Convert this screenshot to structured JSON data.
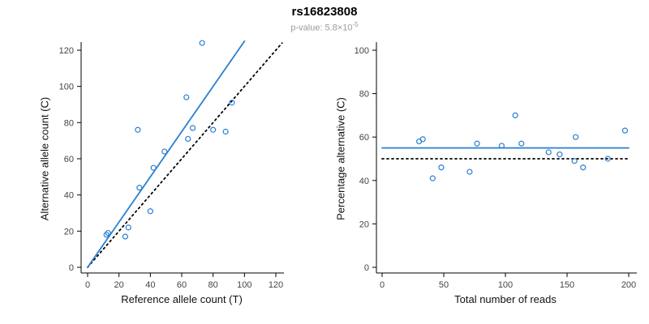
{
  "header": {
    "title": "rs16823808",
    "subtitle_prefix": "p-value: 5.8×10",
    "subtitle_exponent": "-5"
  },
  "chart_data": [
    {
      "type": "scatter",
      "panel": "allele-counts",
      "xlabel": "Reference allele count (T)",
      "ylabel": "Alternative allele count (C)",
      "xlim": [
        0,
        120
      ],
      "ylim": [
        0,
        120
      ],
      "xticks": [
        0,
        20,
        40,
        60,
        80,
        100,
        120
      ],
      "yticks": [
        0,
        20,
        40,
        60,
        80,
        100,
        120
      ],
      "grid": false,
      "legend": "none",
      "point_color": "#2a7fd0",
      "points": [
        [
          12,
          18
        ],
        [
          13,
          19
        ],
        [
          24,
          17
        ],
        [
          26,
          22
        ],
        [
          32,
          76
        ],
        [
          33,
          44
        ],
        [
          40,
          31
        ],
        [
          42,
          55
        ],
        [
          49,
          64
        ],
        [
          63,
          94
        ],
        [
          64,
          71
        ],
        [
          67,
          77
        ],
        [
          73,
          124
        ],
        [
          80,
          76
        ],
        [
          88,
          75
        ],
        [
          92,
          91
        ]
      ],
      "lines": [
        {
          "name": "fitted-line",
          "color": "#2a7fd0",
          "style": "solid",
          "x": [
            0,
            100
          ],
          "y": [
            0,
            125
          ]
        },
        {
          "name": "identity-line",
          "color": "#000000",
          "style": "dotted",
          "x": [
            0,
            124
          ],
          "y": [
            0,
            124
          ]
        }
      ]
    },
    {
      "type": "scatter",
      "panel": "percentage-by-depth",
      "xlabel": "Total number of reads",
      "ylabel": "Percentage alternative (C)",
      "xlim": [
        0,
        200
      ],
      "ylim": [
        0,
        100
      ],
      "xticks": [
        0,
        50,
        100,
        150,
        200
      ],
      "yticks": [
        0,
        20,
        40,
        60,
        80,
        100
      ],
      "grid": false,
      "legend": "none",
      "point_color": "#2a7fd0",
      "points": [
        [
          30,
          58
        ],
        [
          33,
          59
        ],
        [
          41,
          41
        ],
        [
          48,
          46
        ],
        [
          71,
          44
        ],
        [
          77,
          57
        ],
        [
          97,
          56
        ],
        [
          108,
          70
        ],
        [
          113,
          57
        ],
        [
          135,
          53
        ],
        [
          144,
          52
        ],
        [
          156,
          49
        ],
        [
          157,
          60
        ],
        [
          163,
          46
        ],
        [
          183,
          50
        ],
        [
          197,
          63
        ]
      ],
      "lines": [
        {
          "name": "fitted-line",
          "color": "#2a7fd0",
          "style": "solid",
          "x": [
            0,
            200
          ],
          "y": [
            55,
            55
          ]
        },
        {
          "name": "expected-line",
          "color": "#000000",
          "style": "dotted",
          "x": [
            0,
            200
          ],
          "y": [
            50,
            50
          ]
        }
      ]
    }
  ]
}
